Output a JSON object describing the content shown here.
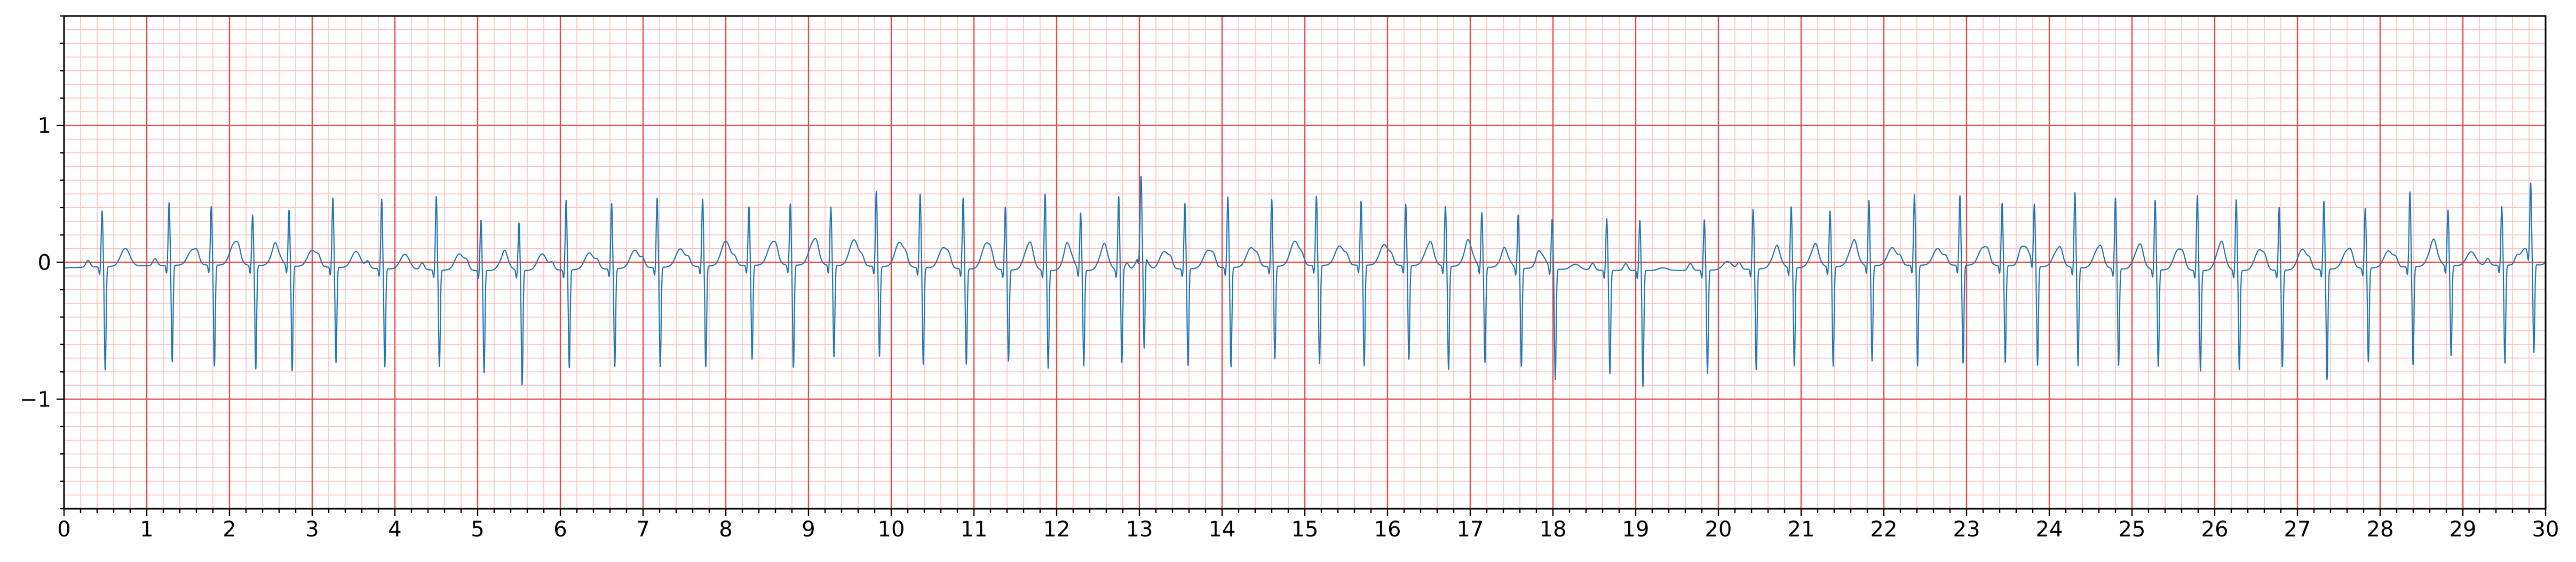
{
  "colors": {
    "background": "#ffffff",
    "minor_grid": "#ffc0c0",
    "major_grid": "#e84a4a",
    "trace": "#1f77b4",
    "axis": "#000000"
  },
  "chart_data": {
    "type": "line",
    "title": "",
    "xlabel": "",
    "ylabel": "",
    "xlim": [
      0,
      30
    ],
    "ylim": [
      -1.8,
      1.8
    ],
    "grid": true,
    "x_major_step": 1,
    "x_minor_step": 0.2,
    "y_major_step": 1,
    "y_minor_step": 0.1,
    "x_ticks": [
      0,
      1,
      2,
      3,
      4,
      5,
      6,
      7,
      8,
      9,
      10,
      11,
      12,
      13,
      14,
      15,
      16,
      17,
      18,
      19,
      20,
      21,
      22,
      23,
      24,
      25,
      26,
      27,
      28,
      29,
      30
    ],
    "y_ticks": [
      -1,
      0,
      1
    ],
    "x_tick_labels": [
      "0",
      "1",
      "2",
      "3",
      "4",
      "5",
      "6",
      "7",
      "8",
      "9",
      "10",
      "11",
      "12",
      "13",
      "14",
      "15",
      "16",
      "17",
      "18",
      "19",
      "20",
      "21",
      "22",
      "23",
      "24",
      "25",
      "26",
      "27",
      "28",
      "29",
      "30"
    ],
    "y_tick_labels": [
      "−1",
      "0",
      "1"
    ],
    "series": [
      {
        "name": "",
        "beat_times": [
          0.46,
          1.27,
          1.78,
          2.28,
          2.72,
          3.25,
          3.84,
          4.5,
          5.04,
          5.5,
          6.07,
          6.62,
          7.17,
          7.72,
          8.28,
          8.78,
          9.27,
          9.82,
          10.35,
          10.87,
          11.38,
          11.86,
          12.29,
          12.75,
          13.02,
          13.55,
          14.07,
          14.6,
          15.14,
          15.68,
          16.22,
          16.7,
          17.14,
          17.58,
          17.99,
          18.65,
          19.05,
          19.83,
          20.42,
          20.88,
          21.35,
          21.82,
          22.37,
          22.92,
          23.43,
          23.82,
          24.31,
          24.8,
          25.28,
          25.79,
          26.26,
          26.78,
          27.32,
          27.82,
          28.36,
          28.82,
          29.47,
          29.82
        ],
        "r_amplitudes": [
          0.41,
          0.46,
          0.43,
          0.37,
          0.41,
          0.51,
          0.51,
          0.54,
          0.37,
          0.35,
          0.51,
          0.48,
          0.51,
          0.49,
          0.43,
          0.45,
          0.43,
          0.55,
          0.54,
          0.52,
          0.46,
          0.56,
          0.42,
          0.54,
          0.55,
          0.48,
          0.52,
          0.49,
          0.51,
          0.47,
          0.45,
          0.44,
          0.4,
          0.39,
          0.36,
          0.38,
          0.37,
          0.37,
          0.44,
          0.45,
          0.41,
          0.48,
          0.52,
          0.51,
          0.46,
          0.44,
          0.55,
          0.52,
          0.51,
          0.55,
          0.52,
          0.46,
          0.5,
          0.44,
          0.55,
          0.41,
          0.43,
          0.55
        ],
        "s_amplitudes": [
          -0.76,
          -0.71,
          -0.74,
          -0.76,
          -0.77,
          -0.7,
          -0.72,
          -0.71,
          -0.75,
          -0.84,
          -0.72,
          -0.72,
          -0.73,
          -0.74,
          -0.69,
          -0.75,
          -0.67,
          -0.66,
          -0.71,
          -0.7,
          -0.67,
          -0.72,
          -0.7,
          -0.68,
          -0.7,
          -0.71,
          -0.73,
          -0.68,
          -0.72,
          -0.74,
          -0.69,
          -0.76,
          -0.7,
          -0.72,
          -0.81,
          -0.76,
          -0.85,
          -0.76,
          -0.74,
          -0.72,
          -0.73,
          -0.7,
          -0.74,
          -0.72,
          -0.71,
          -0.73,
          -0.72,
          -0.71,
          -0.71,
          -0.74,
          -0.73,
          -0.71,
          -0.81,
          -0.69,
          -0.72,
          -0.66,
          -0.72,
          -0.66
        ],
        "t_amplitudes": [
          0.13,
          0.11,
          0.16,
          0.12,
          0.12,
          0.12,
          0.11,
          0.12,
          0.1,
          0.12,
          0.12,
          0.13,
          0.13,
          0.18,
          0.16,
          0.17,
          0.19,
          0.18,
          0.15,
          0.19,
          0.17,
          0.16,
          0.15,
          0.14,
          0.13,
          0.13,
          0.14,
          0.18,
          0.14,
          0.15,
          0.14,
          0.15,
          0.1,
          0.1,
          0.04,
          0.0,
          0.02,
          0.06,
          0.12,
          0.13,
          0.15,
          0.13,
          0.12,
          0.13,
          0.14,
          0.12,
          0.14,
          0.15,
          0.15,
          0.17,
          0.15,
          0.15,
          0.13,
          0.12,
          0.15,
          0.1,
          0.12,
          0.13
        ]
      }
    ]
  }
}
